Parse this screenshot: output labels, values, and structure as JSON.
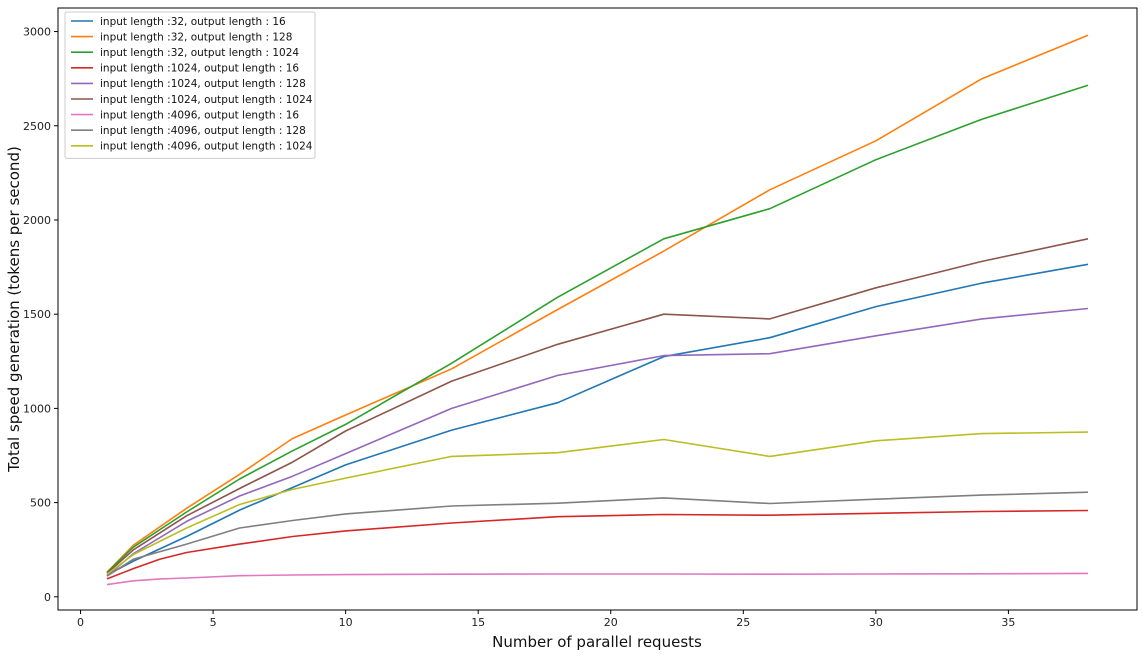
{
  "chart_data": {
    "type": "line",
    "title": "",
    "xlabel": "Number of parallel requests",
    "ylabel": "Total speed generation (tokens per second)",
    "xlim": [
      -0.85,
      39.85
    ],
    "ylim": [
      -70,
      3125
    ],
    "xticks": [
      0,
      5,
      10,
      15,
      20,
      25,
      30,
      35
    ],
    "yticks": [
      0,
      500,
      1000,
      1500,
      2000,
      2500,
      3000
    ],
    "grid": false,
    "legend_position": "top-left",
    "series": [
      {
        "name": "input length :32, output length : 16",
        "color": "#1f77b4",
        "x": [
          1,
          2,
          4,
          6,
          8,
          10,
          14,
          18,
          22,
          26,
          30,
          34,
          38
        ],
        "y": [
          115,
          190,
          320,
          460,
          580,
          700,
          885,
          1030,
          1275,
          1375,
          1540,
          1665,
          1765
        ]
      },
      {
        "name": "input length :32, output length : 128",
        "color": "#ff7f0e",
        "x": [
          1,
          2,
          4,
          6,
          8,
          10,
          14,
          18,
          22,
          26,
          30,
          34,
          38
        ],
        "y": [
          130,
          275,
          470,
          650,
          840,
          965,
          1210,
          1525,
          1835,
          2160,
          2420,
          2750,
          2980
        ]
      },
      {
        "name": "input length :32, output length : 1024",
        "color": "#2ca02c",
        "x": [
          1,
          2,
          4,
          6,
          8,
          10,
          14,
          18,
          22,
          26,
          30,
          34,
          38
        ],
        "y": [
          130,
          265,
          450,
          625,
          775,
          915,
          1240,
          1590,
          1900,
          2060,
          2320,
          2535,
          2715
        ]
      },
      {
        "name": "input length :1024, output length : 16",
        "color": "#d62728",
        "x": [
          1,
          2,
          3,
          4,
          6,
          8,
          10,
          14,
          18,
          22,
          26,
          30,
          34,
          38
        ],
        "y": [
          95,
          150,
          200,
          235,
          280,
          320,
          350,
          392,
          425,
          437,
          433,
          443,
          453,
          458
        ]
      },
      {
        "name": "input length :1024, output length : 128",
        "color": "#9467bd",
        "x": [
          1,
          2,
          4,
          6,
          8,
          10,
          14,
          18,
          22,
          26,
          30,
          34,
          38
        ],
        "y": [
          110,
          230,
          400,
          535,
          640,
          760,
          1000,
          1175,
          1280,
          1290,
          1385,
          1475,
          1530
        ]
      },
      {
        "name": "input length :1024, output length : 1024",
        "color": "#8c564b",
        "x": [
          1,
          2,
          4,
          6,
          8,
          10,
          14,
          18,
          22,
          26,
          30,
          34,
          38
        ],
        "y": [
          125,
          250,
          430,
          575,
          715,
          880,
          1145,
          1340,
          1500,
          1475,
          1640,
          1780,
          1900
        ]
      },
      {
        "name": "input length :4096, output length : 16",
        "color": "#e377c2",
        "x": [
          1,
          2,
          3,
          4,
          6,
          8,
          10,
          14,
          18,
          22,
          26,
          30,
          34,
          38
        ],
        "y": [
          65,
          85,
          95,
          100,
          112,
          116,
          118,
          120,
          121,
          121,
          120,
          121,
          122,
          124
        ]
      },
      {
        "name": "input length :4096, output length : 128",
        "color": "#7f7f7f",
        "x": [
          1,
          2,
          4,
          6,
          8,
          10,
          14,
          18,
          22,
          26,
          30,
          34,
          38
        ],
        "y": [
          110,
          200,
          280,
          365,
          405,
          440,
          482,
          497,
          525,
          495,
          518,
          540,
          555
        ]
      },
      {
        "name": "input length :4096, output length : 1024",
        "color": "#bcbd22",
        "x": [
          1,
          2,
          4,
          6,
          8,
          10,
          14,
          18,
          22,
          26,
          30,
          34,
          38
        ],
        "y": [
          120,
          225,
          365,
          490,
          570,
          630,
          745,
          765,
          835,
          745,
          828,
          866,
          874
        ]
      }
    ]
  }
}
